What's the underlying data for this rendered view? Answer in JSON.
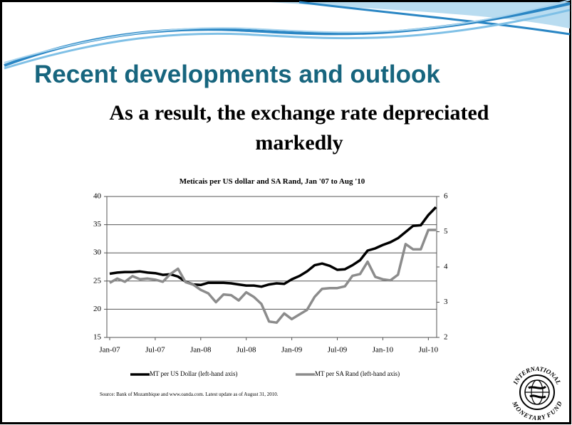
{
  "slide": {
    "title": "Recent developments and outlook",
    "subtitle_line1": "As a result, the exchange rate depreciated",
    "subtitle_line2": "markedly"
  },
  "chart_data": {
    "type": "line",
    "title": "Meticais per US dollar and SA Rand, Jan '07 to Aug '10",
    "categories": [
      "Jan-07",
      null,
      null,
      null,
      null,
      null,
      "Jul-07",
      null,
      null,
      null,
      null,
      null,
      "Jan-08",
      null,
      null,
      null,
      null,
      null,
      "Jul-08",
      null,
      null,
      null,
      null,
      null,
      "Jan-09",
      null,
      null,
      null,
      null,
      null,
      "Jul-09",
      null,
      null,
      null,
      null,
      null,
      "Jan-10",
      null,
      null,
      null,
      null,
      null,
      "Jul-10",
      null
    ],
    "series": [
      {
        "name": "MT per US Dollar (left-hand axis)",
        "color": "#000000",
        "values": [
          26.3,
          26.5,
          26.6,
          26.6,
          26.7,
          26.5,
          26.4,
          26.1,
          26.2,
          25.8,
          24.9,
          24.4,
          24.3,
          24.7,
          24.7,
          24.7,
          24.6,
          24.4,
          24.2,
          24.2,
          24.0,
          24.4,
          24.6,
          24.5,
          25.3,
          25.9,
          26.7,
          27.8,
          28.1,
          27.7,
          27.0,
          27.1,
          27.8,
          28.7,
          30.4,
          30.8,
          31.4,
          31.9,
          32.6,
          33.7,
          34.8,
          34.9,
          36.7,
          38.1
        ]
      },
      {
        "name": "MT per SA Rand (left-hand axis)",
        "color": "#8c8c8c",
        "axis": "y2",
        "values": [
          3.55,
          3.67,
          3.58,
          3.74,
          3.65,
          3.67,
          3.64,
          3.58,
          3.8,
          3.95,
          3.57,
          3.5,
          3.35,
          3.25,
          3.0,
          3.22,
          3.2,
          3.05,
          3.28,
          3.15,
          2.95,
          2.45,
          2.42,
          2.68,
          2.52,
          2.65,
          2.78,
          3.15,
          3.38,
          3.4,
          3.4,
          3.45,
          3.75,
          3.8,
          4.15,
          3.72,
          3.65,
          3.62,
          3.78,
          4.65,
          4.5,
          4.5,
          5.05,
          5.05
        ]
      }
    ],
    "ylim": [
      15,
      40
    ],
    "yticks": [
      15,
      20,
      25,
      30,
      35,
      40
    ],
    "y2lim": [
      2,
      6
    ],
    "y2ticks": [
      2,
      3,
      4,
      5,
      6
    ],
    "grid": true,
    "legend": "bottom"
  },
  "source": "Source:  Bank of Mozambique and www.oanda.com. Latest update as of August 31, 2010.",
  "logo": {
    "top": "INTERNATIONAL",
    "bottom": "MONETARY FUND"
  }
}
